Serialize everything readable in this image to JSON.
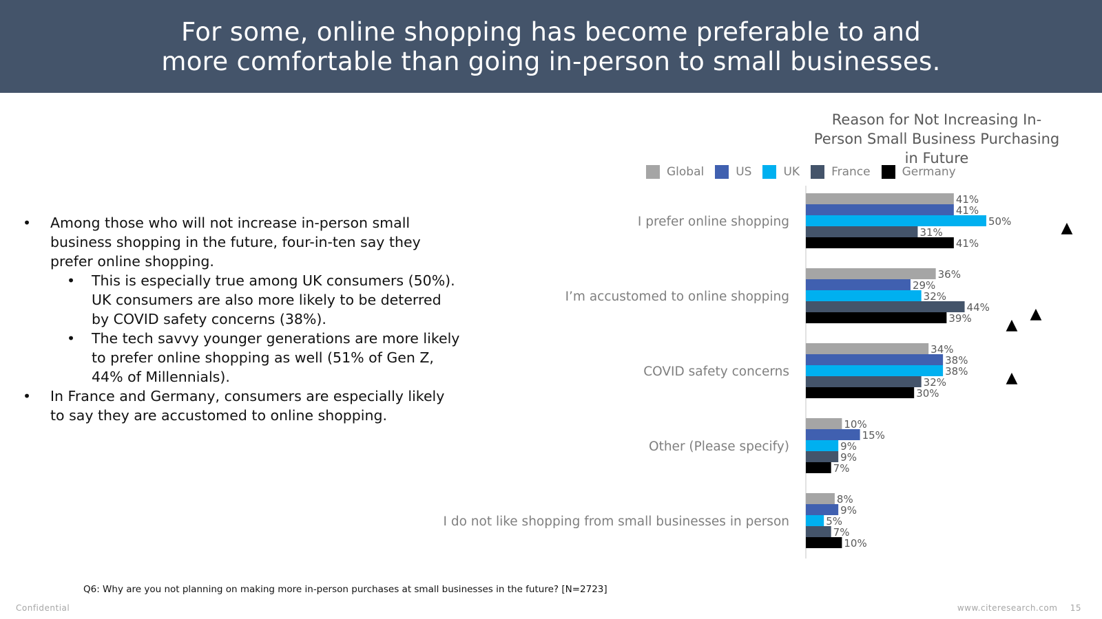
{
  "header": {
    "title_line1": "For some, online shopping has become preferable to and",
    "title_line2": "more comfortable than going in-person to small businesses."
  },
  "bullets": {
    "b1": "Among those who will not increase in-person small business shopping in the future, four-in-ten say they prefer online shopping.",
    "b1_sub1": "This is especially true among UK consumers (50%).  UK consumers are also more likely to be deterred by COVID safety concerns (38%).",
    "b1_sub2": "The tech savvy younger generations are more likely to prefer online shopping as well (51% of Gen Z, 44% of Millennials).",
    "b2": "In France and Germany, consumers are especially likely to say they are accustomed to online shopping."
  },
  "footnote": "Q6: Why are you not planning on making more in-person purchases at small businesses in the future? [N=2723]",
  "footer": {
    "confidential": "Confidential",
    "url": "www.citeresearch.com",
    "page": "15"
  },
  "chart_data": {
    "type": "bar",
    "orientation": "horizontal",
    "title_line1": "Reason for Not Increasing In-",
    "title_line2": "Person Small Business Purchasing",
    "title_line3": "in Future",
    "categories": [
      "I prefer online shopping",
      "I’m accustomed to online shopping",
      "COVID safety concerns",
      "Other (Please specify)",
      "I do not like shopping from small businesses in person"
    ],
    "series": [
      {
        "name": "Global",
        "color": "#a5a5a5",
        "values": [
          41,
          36,
          34,
          10,
          8
        ]
      },
      {
        "name": "US",
        "color": "#4060b0",
        "values": [
          41,
          29,
          38,
          15,
          9
        ]
      },
      {
        "name": "UK",
        "color": "#00b0f0",
        "values": [
          50,
          32,
          38,
          9,
          5
        ]
      },
      {
        "name": "France",
        "color": "#44546a",
        "values": [
          31,
          44,
          32,
          9,
          7
        ]
      },
      {
        "name": "Germany",
        "color": "#000000",
        "values": [
          41,
          39,
          30,
          7,
          10
        ]
      }
    ],
    "value_suffix": "%",
    "significance_markers": [
      {
        "category": 0,
        "series": 2
      },
      {
        "category": 1,
        "series": 3
      },
      {
        "category": 1,
        "series": 4
      },
      {
        "category": 2,
        "series": 2
      }
    ],
    "marker_glyph": "▲",
    "legend_position": "top",
    "grid": false
  }
}
